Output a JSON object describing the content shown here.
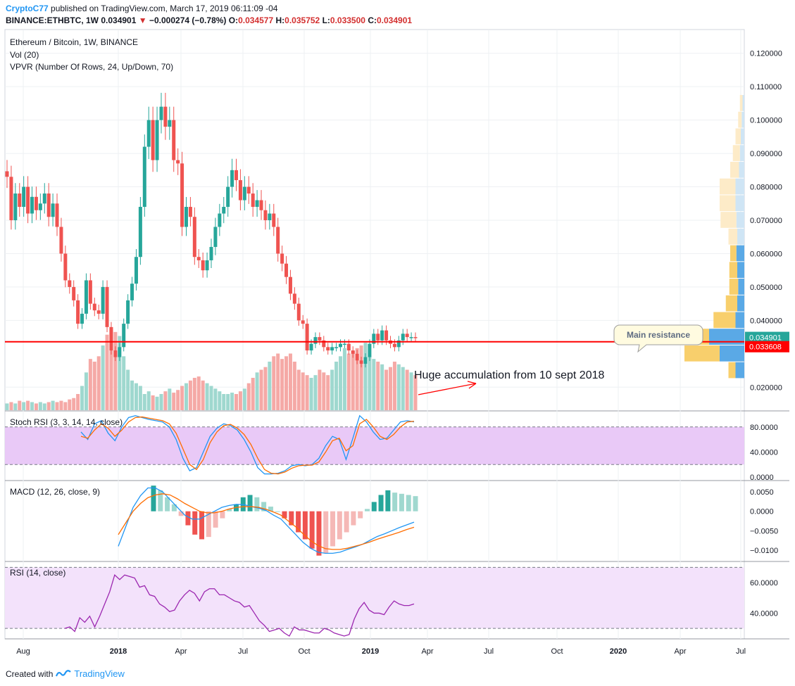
{
  "header": {
    "author": "CryptoC77",
    "published": "published on TradingView.com, March 17, 2019 06:11:09 -04",
    "symbol": "BINANCE:ETHBTC, 1W",
    "price": "0.034901",
    "change": "−0.000274 (−0.78%)",
    "o_label": "O:",
    "o_value": "0.034577",
    "h_label": "H:",
    "h_value": "0.035752",
    "l_label": "L:",
    "l_value": "0.033500",
    "c_label": "C:",
    "c_value": "0.034901"
  },
  "legend": {
    "series": "Ethereum / Bitcoin, 1W, BINANCE",
    "vol": "Vol (20)",
    "vpvr": "VPVR (Number Of Rows, 24, Up/Down, 70)"
  },
  "annotations": {
    "resistance_callout": "Main resistance",
    "accumulation_text": "Huge accumulation from 10 sept 2018"
  },
  "footer": {
    "created_with": "Created with",
    "brand": "TradingView"
  },
  "colors": {
    "up": "#26a69a",
    "down": "#ef5350",
    "line_red": "#ff0000",
    "stoch_k": "#2196f3",
    "stoch_d": "#ff6d00",
    "rsi": "#9c27b0",
    "band": "#e1bee7"
  },
  "chart_data": [
    {
      "type": "candlestick",
      "title": "Ethereum / Bitcoin, 1W, BINANCE",
      "x_ticks": [
        "Aug",
        "2018",
        "Apr",
        "Jul",
        "Oct",
        "2019",
        "Apr",
        "Jul",
        "Oct",
        "2020",
        "Apr",
        "Jul"
      ],
      "y_ticks": [
        "0.120000",
        "0.110000",
        "0.100000",
        "0.090000",
        "0.080000",
        "0.070000",
        "0.060000",
        "0.050000",
        "0.040000",
        "0.020000"
      ],
      "ylim": [
        0.015,
        0.125
      ],
      "last_price": "0.034901",
      "horizontal_line_label": "0.033608",
      "horizontal_line_value": 0.0336,
      "close_prices": [
        0.083,
        0.07,
        0.078,
        0.074,
        0.08,
        0.072,
        0.077,
        0.073,
        0.075,
        0.078,
        0.071,
        0.075,
        0.068,
        0.06,
        0.052,
        0.05,
        0.046,
        0.039,
        0.042,
        0.052,
        0.045,
        0.043,
        0.042,
        0.05,
        0.038,
        0.031,
        0.029,
        0.032,
        0.039,
        0.046,
        0.051,
        0.059,
        0.074,
        0.092,
        0.1,
        0.088,
        0.1,
        0.104,
        0.098,
        0.1,
        0.088,
        0.087,
        0.068,
        0.074,
        0.071,
        0.059,
        0.058,
        0.055,
        0.058,
        0.062,
        0.068,
        0.072,
        0.074,
        0.08,
        0.085,
        0.082,
        0.076,
        0.08,
        0.078,
        0.074,
        0.076,
        0.073,
        0.07,
        0.072,
        0.068,
        0.06,
        0.057,
        0.053,
        0.048,
        0.045,
        0.04,
        0.039,
        0.031,
        0.033,
        0.035,
        0.034,
        0.032,
        0.031,
        0.032,
        0.032,
        0.033,
        0.033,
        0.031,
        0.03,
        0.028,
        0.027,
        0.029,
        0.033,
        0.036,
        0.034,
        0.037,
        0.034,
        0.033,
        0.032,
        0.034,
        0.036,
        0.035,
        0.035,
        0.0349
      ],
      "vpvr_levels": [
        0.105,
        0.1,
        0.095,
        0.09,
        0.085,
        0.08,
        0.075,
        0.07,
        0.065,
        0.06,
        0.055,
        0.05,
        0.045,
        0.04,
        0.035,
        0.03,
        0.025
      ],
      "vpvr_up": [
        2,
        3,
        4,
        5,
        6,
        10,
        10,
        9,
        8,
        9,
        8,
        7,
        8,
        10,
        40,
        28,
        10
      ],
      "vpvr_down": [
        3,
        4,
        6,
        8,
        10,
        18,
        18,
        18,
        10,
        7,
        9,
        10,
        13,
        25,
        60,
        40,
        8
      ],
      "volume": [
        5,
        6,
        5,
        7,
        6,
        7,
        6,
        5,
        6,
        5,
        6,
        7,
        6,
        7,
        6,
        8,
        9,
        12,
        18,
        28,
        38,
        36,
        40,
        48,
        56,
        60,
        58,
        55,
        40,
        30,
        22,
        20,
        18,
        12,
        14,
        11,
        10,
        12,
        14,
        16,
        13,
        15,
        18,
        20,
        22,
        24,
        25,
        22,
        20,
        18,
        16,
        14,
        12,
        12,
        13,
        12,
        14,
        16,
        20,
        24,
        28,
        30,
        32,
        36,
        40,
        42,
        38,
        40,
        42,
        36,
        30,
        28,
        26,
        24,
        26,
        30,
        28,
        26,
        30,
        36,
        40,
        46,
        42,
        44,
        46,
        48,
        50,
        40,
        38,
        36,
        34,
        30,
        32,
        36,
        34,
        32,
        30,
        28,
        26
      ]
    },
    {
      "type": "line",
      "title": "Stoch RSI (3, 3, 14, 14, close)",
      "y_ticks": [
        "80.0000",
        "40.0000",
        "0.0000"
      ],
      "ylim": [
        0,
        100
      ],
      "band": [
        20,
        80
      ],
      "series": [
        {
          "values": [
            72,
            60,
            85,
            90,
            70,
            58,
            80,
            95,
            98,
            95,
            92,
            90,
            88,
            80,
            60,
            30,
            10,
            15,
            40,
            65,
            78,
            85,
            82,
            75,
            60,
            40,
            15,
            5,
            5,
            6,
            10,
            18,
            20,
            18,
            20,
            30,
            50,
            65,
            60,
            28,
            62,
            98,
            88,
            72,
            60,
            62,
            75,
            88,
            90,
            88
          ]
        },
        {
          "values": [
            65,
            62,
            75,
            85,
            78,
            65,
            75,
            88,
            95,
            96,
            94,
            92,
            90,
            85,
            70,
            45,
            20,
            12,
            28,
            55,
            72,
            82,
            84,
            78,
            68,
            52,
            30,
            12,
            6,
            5,
            8,
            14,
            18,
            19,
            19,
            24,
            40,
            58,
            62,
            42,
            50,
            85,
            92,
            80,
            65,
            60,
            68,
            80,
            88,
            89
          ]
        }
      ]
    },
    {
      "type": "bar",
      "title": "MACD (12, 26, close, 9)",
      "y_ticks": [
        "0.0050",
        "0.0000",
        "−0.0050",
        "−0.0100"
      ],
      "ylim": [
        -0.012,
        0.007
      ],
      "series": [
        {
          "values": [
            -0.009,
            -0.004,
            0.001,
            0.004,
            0.006,
            0.006,
            0.005,
            0.003,
            0.001,
            -0.001,
            -0.002,
            -0.002,
            -0.001,
            0.0,
            0.001,
            0.0015,
            0.0018,
            0.0017,
            0.0012,
            0.0008,
            0.0002,
            -0.001,
            -0.002,
            -0.004,
            -0.006,
            -0.008,
            -0.0095,
            -0.0105,
            -0.0108,
            -0.0108,
            -0.0105,
            -0.0098,
            -0.0092,
            -0.0085,
            -0.0075,
            -0.0065,
            -0.0058,
            -0.005,
            -0.0042,
            -0.0035,
            -0.0028
          ]
        },
        {
          "values": [
            -0.006,
            -0.003,
            0.0,
            0.002,
            0.0035,
            0.0042,
            0.0045,
            0.0042,
            0.0032,
            0.002,
            0.001,
            0.0,
            -0.0004,
            -0.0004,
            0.0,
            0.0006,
            0.001,
            0.0012,
            0.0012,
            0.001,
            0.0005,
            -0.0002,
            -0.001,
            -0.0025,
            -0.004,
            -0.0058,
            -0.0075,
            -0.0088,
            -0.0096,
            -0.0098,
            -0.0098,
            -0.0095,
            -0.009,
            -0.0085,
            -0.0079,
            -0.0072,
            -0.0066,
            -0.006,
            -0.0054,
            -0.0047,
            -0.0041
          ]
        },
        {
          "values": [
            0.0022,
            0.0018,
            0.0012,
            0.0006,
            -0.0004,
            -0.0012,
            -0.002,
            -0.0024,
            -0.0022,
            -0.0014,
            -0.0006,
            0.0002,
            0.0006,
            0.0012,
            0.0014,
            0.0012,
            0.0008,
            0.0004,
            0.0,
            -0.0006,
            -0.0012,
            -0.0018,
            -0.0024,
            -0.0032,
            -0.0038,
            -0.0036,
            -0.003,
            -0.0024,
            -0.0018,
            -0.0012,
            -0.0006,
            0.0002,
            0.0008,
            0.0014,
            0.0018,
            0.0016,
            0.0015,
            0.0014,
            0.0013
          ]
        }
      ]
    },
    {
      "type": "line",
      "title": "RSI (14, close)",
      "y_ticks": [
        "60.0000",
        "40.0000"
      ],
      "ylim": [
        25,
        72
      ],
      "band": [
        30,
        70
      ],
      "series": [
        {
          "values": [
            30,
            31,
            28,
            37,
            34,
            38,
            31,
            38,
            46,
            54,
            65,
            62,
            65,
            64,
            63,
            57,
            58,
            52,
            51,
            46,
            44,
            41,
            42,
            48,
            52,
            55,
            53,
            48,
            54,
            56,
            56,
            52,
            52,
            50,
            48,
            47,
            44,
            45,
            40,
            35,
            32,
            28,
            29,
            30,
            27,
            25,
            31,
            29,
            29,
            28,
            27,
            27,
            30,
            29,
            27,
            26,
            25,
            26,
            36,
            43,
            47,
            42,
            40,
            40,
            39,
            44,
            48,
            46,
            45,
            45,
            46
          ]
        }
      ]
    }
  ]
}
